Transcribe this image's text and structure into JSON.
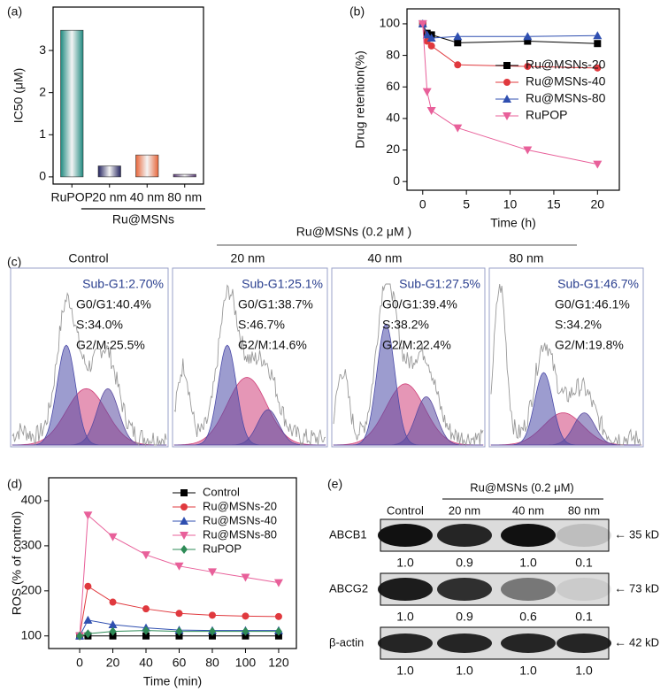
{
  "chart_data": [
    {
      "type": "bar",
      "panel_label": "(a)",
      "y_label": "IC50 (μM)",
      "group_label": "Ru@MSNs",
      "categories": [
        "RuPOP",
        "20 nm",
        "40 nm",
        "80 nm"
      ],
      "values": [
        3.48,
        0.26,
        0.52,
        0.06
      ],
      "colors": [
        "#1f8a80",
        "#23235e",
        "#e8663a",
        "#5a3a78"
      ],
      "ylim": [
        -0.17,
        4.03
      ],
      "yticks": [
        0,
        1,
        2,
        3
      ]
    },
    {
      "type": "line",
      "panel_label": "(b)",
      "x_label": "Time (h)",
      "y_label": "Drug retention(%)",
      "legend": "center right",
      "x": [
        0,
        0.5,
        1,
        4,
        12,
        20
      ],
      "series": [
        {
          "name": "Ru@MSNs-20",
          "color": "#000000",
          "marker": "square",
          "values": [
            100,
            94,
            93,
            88,
            89,
            87.5
          ]
        },
        {
          "name": "Ru@MSNs-40",
          "color": "#e0393e",
          "marker": "circle",
          "values": [
            100,
            89,
            86,
            74,
            73,
            72
          ]
        },
        {
          "name": "Ru@MSNs-80",
          "color": "#2f4fb0",
          "marker": "triangle-up",
          "values": [
            100,
            93,
            91,
            92,
            92,
            92.5
          ]
        },
        {
          "name": "RuPOP",
          "color": "#e8609a",
          "marker": "triangle-down",
          "values": [
            100,
            57,
            45,
            34,
            20,
            11
          ]
        }
      ],
      "xlim": [
        -1.8,
        22.5
      ],
      "ylim": [
        -5.5,
        109.5
      ],
      "xticks": [
        0,
        5,
        10,
        15,
        20
      ],
      "yticks": [
        0,
        20,
        40,
        60,
        80,
        100
      ]
    },
    {
      "type": "line",
      "panel_label": "(d)",
      "x_label": "Time (min)",
      "y_label": "ROS (% of control)",
      "legend": "upper right",
      "x": [
        0,
        5,
        20,
        40,
        60,
        80,
        100,
        120
      ],
      "series": [
        {
          "name": "Control",
          "color": "#000000",
          "marker": "square",
          "values": [
            100,
            100,
            100,
            100,
            100,
            100,
            100,
            100
          ]
        },
        {
          "name": "Ru@MSNs-20",
          "color": "#e0393e",
          "marker": "circle",
          "values": [
            100,
            210,
            175,
            160,
            150,
            146,
            144,
            143
          ]
        },
        {
          "name": "Ru@MSNs-40",
          "color": "#2f4fb0",
          "marker": "triangle-up",
          "values": [
            100,
            135,
            125,
            118,
            113,
            112,
            112,
            112
          ]
        },
        {
          "name": "Ru@MSNs-80",
          "color": "#e8609a",
          "marker": "triangle-down",
          "values": [
            100,
            368,
            320,
            280,
            255,
            242,
            230,
            218
          ]
        },
        {
          "name": "RuPOP",
          "color": "#2e8b57",
          "marker": "diamond",
          "values": [
            100,
            105,
            110,
            112,
            110,
            110,
            110,
            110
          ]
        }
      ],
      "xlim": [
        -18.7,
        130.7
      ],
      "ylim": [
        72,
        451
      ],
      "xticks": [
        0,
        20,
        40,
        60,
        80,
        100,
        120
      ],
      "yticks": [
        100,
        200,
        300,
        400
      ]
    }
  ],
  "cell_cycle": {
    "panel_label": "(c)",
    "title": "Ru@MSNs (0.2 μM )",
    "samples": [
      {
        "label": "Control",
        "sub_g1": "Sub-G1:2.70%",
        "g0_g1": "G0/G1:40.4%",
        "s": "S:34.0%",
        "g2_m": "G2/M:25.5%"
      },
      {
        "label": "20 nm",
        "sub_g1": "Sub-G1:25.1%",
        "g0_g1": "G0/G1:38.7%",
        "s": "S:46.7%",
        "g2_m": "G2/M:14.6%"
      },
      {
        "label": "40 nm",
        "sub_g1": "Sub-G1:27.5%",
        "g0_g1": "G0/G1:39.4%",
        "s": "S:38.2%",
        "g2_m": "G2/M:22.4%"
      },
      {
        "label": "80 nm",
        "sub_g1": "Sub-G1:46.7%",
        "g0_g1": "G0/G1:46.1%",
        "s": "S:34.2%",
        "g2_m": "G2/M:19.8%"
      }
    ]
  },
  "western_blot": {
    "panel_label": "(e)",
    "treatment": "Ru@MSNs  (0.2 μM)",
    "lanes": [
      "Control",
      "20 nm",
      "40 nm",
      "80 nm"
    ],
    "rows": [
      {
        "protein": "ABCB1",
        "size": "35 kD",
        "ratios": [
          "1.0",
          "0.9",
          "1.0",
          "0.1"
        ]
      },
      {
        "protein": "ABCG2",
        "size": "73 kD",
        "ratios": [
          "1.0",
          "0.9",
          "0.6",
          "0.1"
        ]
      },
      {
        "protein": "β-actin",
        "size": "42 kD",
        "ratios": [
          "1.0",
          "1.0",
          "1.0",
          "1.0"
        ]
      }
    ]
  }
}
